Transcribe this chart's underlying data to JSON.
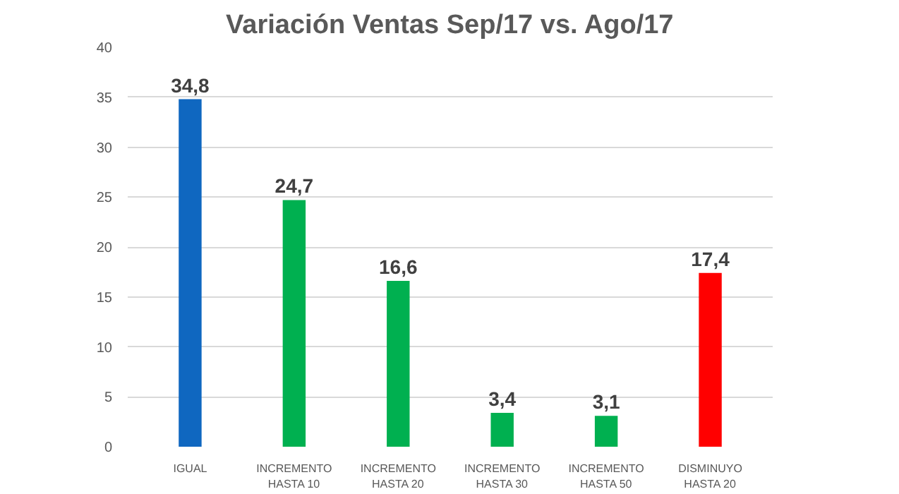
{
  "chart_data": {
    "type": "bar",
    "title": "Variación Ventas Sep/17 vs. Ago/17",
    "categories": [
      "IGUAL",
      "INCREMENTO\nHASTA 10",
      "INCREMENTO\nHASTA 20",
      "INCREMENTO\nHASTA 30",
      "INCREMENTO\nHASTA 50",
      "DISMINUYO\nHASTA 20"
    ],
    "values": [
      34.8,
      24.7,
      16.6,
      3.4,
      3.1,
      17.4
    ],
    "colors": [
      "#0f67c0",
      "#00b050",
      "#00b050",
      "#00b050",
      "#00b050",
      "#ff0000"
    ],
    "value_labels": [
      "34,8",
      "24,7",
      "16,6",
      "3,4",
      "3,1",
      "17,4"
    ],
    "ylim": [
      0,
      40
    ],
    "yticks": [
      0,
      5,
      10,
      15,
      20,
      25,
      30,
      35,
      40
    ],
    "grid": "y"
  }
}
